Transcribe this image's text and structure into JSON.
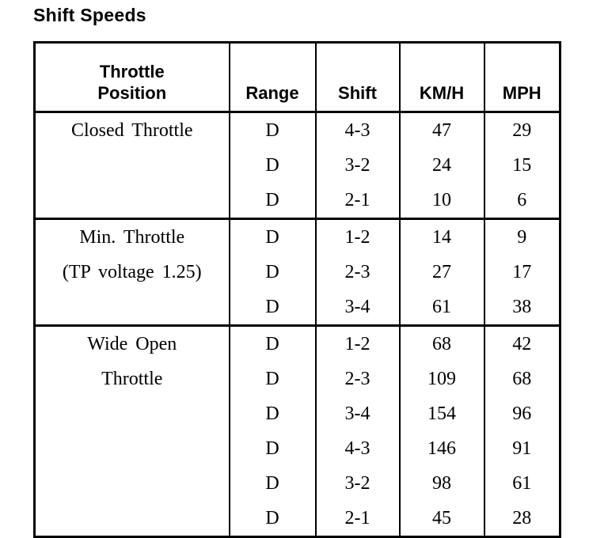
{
  "title": "Shift Speeds",
  "table": {
    "headers": [
      "Throttle\nPosition",
      "Range",
      "Shift",
      "KM/H",
      "MPH"
    ],
    "sections": [
      {
        "label_lines": [
          "Closed Throttle"
        ],
        "rows": [
          {
            "range": "D",
            "shift": "4-3",
            "kmh": "47",
            "mph": "29"
          },
          {
            "range": "D",
            "shift": "3-2",
            "kmh": "24",
            "mph": "15"
          },
          {
            "range": "D",
            "shift": "2-1",
            "kmh": "10",
            "mph": "6"
          }
        ]
      },
      {
        "label_lines": [
          "Min. Throttle",
          "(TP voltage 1.25)"
        ],
        "rows": [
          {
            "range": "D",
            "shift": "1-2",
            "kmh": "14",
            "mph": "9"
          },
          {
            "range": "D",
            "shift": "2-3",
            "kmh": "27",
            "mph": "17"
          },
          {
            "range": "D",
            "shift": "3-4",
            "kmh": "61",
            "mph": "38"
          }
        ]
      },
      {
        "label_lines": [
          "Wide Open",
          "Throttle"
        ],
        "rows": [
          {
            "range": "D",
            "shift": "1-2",
            "kmh": "68",
            "mph": "42"
          },
          {
            "range": "D",
            "shift": "2-3",
            "kmh": "109",
            "mph": "68"
          },
          {
            "range": "D",
            "shift": "3-4",
            "kmh": "154",
            "mph": "96"
          },
          {
            "range": "D",
            "shift": "4-3",
            "kmh": "146",
            "mph": "91"
          },
          {
            "range": "D",
            "shift": "3-2",
            "kmh": "98",
            "mph": "61"
          },
          {
            "range": "D",
            "shift": "2-1",
            "kmh": "45",
            "mph": "28"
          }
        ]
      }
    ]
  },
  "colors": {
    "background": "#ffffff",
    "text": "#000000",
    "border": "#000000"
  }
}
